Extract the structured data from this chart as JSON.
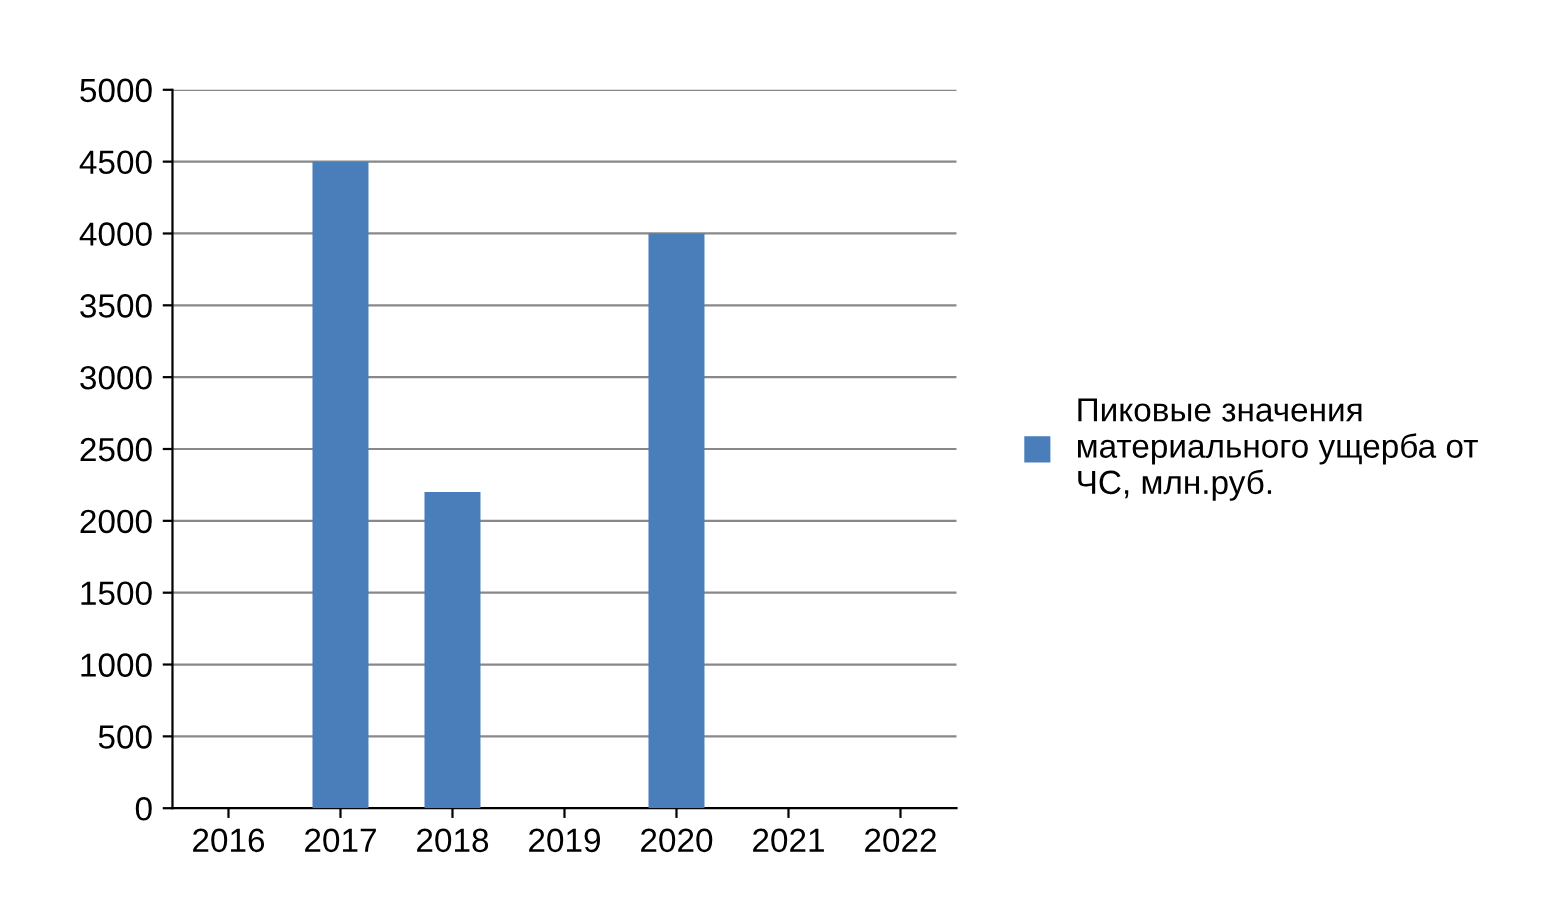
{
  "chart_data": {
    "type": "bar",
    "categories": [
      "2016",
      "2017",
      "2018",
      "2019",
      "2020",
      "2021",
      "2022"
    ],
    "series": [
      {
        "name": "Пиковые значения материального ущерба от ЧС, млн.руб.",
        "color": "#4a7ebb",
        "values": [
          0,
          4500,
          2200,
          0,
          4000,
          0,
          0
        ]
      }
    ],
    "ylim": [
      0,
      5000
    ],
    "yticks": [
      0,
      500,
      1000,
      1500,
      2000,
      2500,
      3000,
      3500,
      4000,
      4500,
      5000
    ],
    "grid": "y",
    "legend": "right"
  }
}
